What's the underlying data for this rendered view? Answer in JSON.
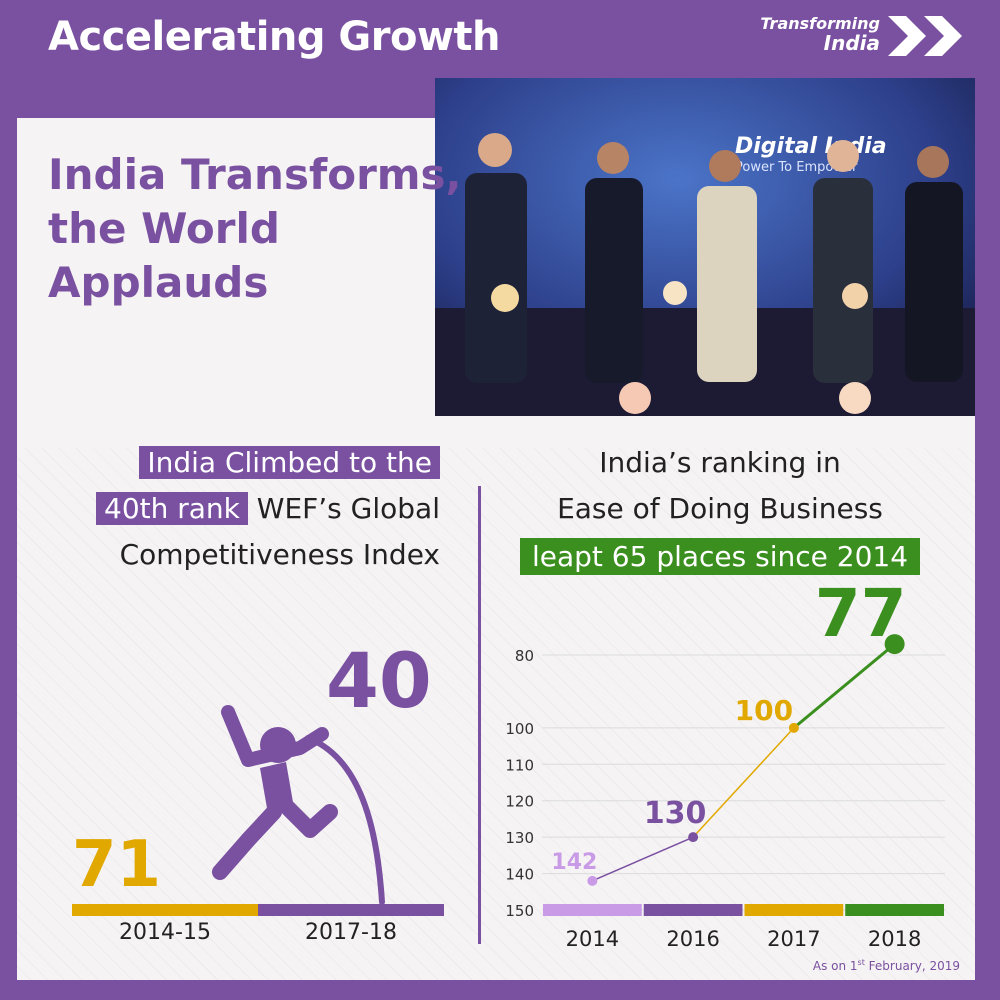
{
  "header": {
    "title": "Accelerating Growth",
    "brand_line1": "Transforming",
    "brand_line2": "India"
  },
  "headline": {
    "line1": "India Transforms,",
    "line2": "the World",
    "line3": "Applauds"
  },
  "photo": {
    "banner_title": "Digital India",
    "banner_subtitle": "Power To Empower"
  },
  "wef": {
    "caption_line1": "India Climbed to the",
    "caption_rank": "40th rank",
    "caption_line2_rest": "WEF’s Global",
    "caption_line3": "Competitiveness Index",
    "from_value": "71",
    "to_value": "40",
    "from_label": "2014-15",
    "to_label": "2017-18",
    "colors": {
      "from": "#e1a800",
      "to": "#7a50a0"
    },
    "icon": "pole-vaulter-icon"
  },
  "ease": {
    "title_line1": "India’s ranking in",
    "title_line2": "Ease of Doing Business",
    "highlight": "leapt 65 places since 2014",
    "highlight_color": "#3b8f1e"
  },
  "chart_data": {
    "type": "line",
    "categories": [
      "2014",
      "2016",
      "2017",
      "2018"
    ],
    "values": [
      142,
      130,
      100,
      77
    ],
    "data_labels": [
      "142",
      "130",
      "100",
      "77"
    ],
    "point_colors": [
      "#c99be6",
      "#7a50a0",
      "#e1a800",
      "#3b8f1e"
    ],
    "yticks": [
      80,
      100,
      110,
      120,
      130,
      140,
      150
    ],
    "ylim": [
      150,
      70
    ],
    "y_inverted": true,
    "grid": "diagonal-lines"
  },
  "footnote": {
    "prefix": "As on 1",
    "sup": "st",
    "suffix": " February, 2019"
  }
}
